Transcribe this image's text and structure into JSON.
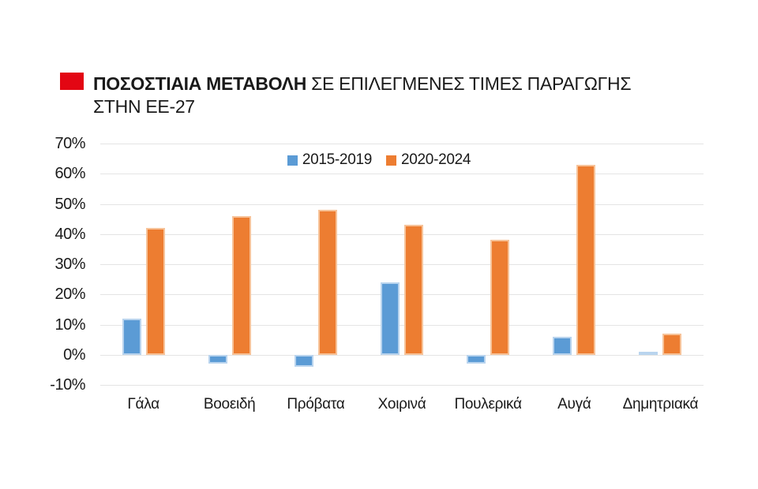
{
  "title": {
    "bullet_color": "#e30613",
    "line1_bold": "ΠΟΣΟΣΤΙΑΙΑ ΜΕΤΑΒΟΛΗ",
    "line1_rest": " ΣΕ ΕΠΙΛΕΓΜΕΝΕΣ ΤΙΜΕΣ ΠΑΡΑΓΩΓΗΣ",
    "line2": "ΣΤΗΝ ΕΕ-27"
  },
  "colors": {
    "background": "#ffffff",
    "text": "#1a1a1a",
    "gridline": "#e4e4e4",
    "accent_red": "#e30613"
  },
  "chart_data": {
    "type": "bar",
    "title": "ΠΟΣΟΣΤΙΑΙΑ ΜΕΤΑΒΟΛΗ ΣΕ ΕΠΙΛΕΓΜΕΝΕΣ ΤΙΜΕΣ ΠΑΡΑΓΩΓΗΣ ΣΤΗΝ ΕΕ-27",
    "categories": [
      "Γάλα",
      "Βοοειδή",
      "Πρόβατα",
      "Χοιρινά",
      "Πουλερικά",
      "Αυγά",
      "Δημητριακά"
    ],
    "series": [
      {
        "name": "2015-2019",
        "color": "#5b9bd5",
        "border_color": "#b9d4ee",
        "values": [
          12,
          -3,
          -4,
          24,
          -3,
          6,
          1
        ]
      },
      {
        "name": "2020-2024",
        "color": "#ed7d31",
        "border_color": "#f7c399",
        "values": [
          42,
          46,
          48,
          43,
          38,
          63,
          7
        ]
      }
    ],
    "xlabel": "",
    "ylabel": "",
    "ylim": [
      -10,
      70
    ],
    "ytick_step": 10,
    "ytick_suffix": "%",
    "grid": true,
    "legend_position": "top-center"
  }
}
